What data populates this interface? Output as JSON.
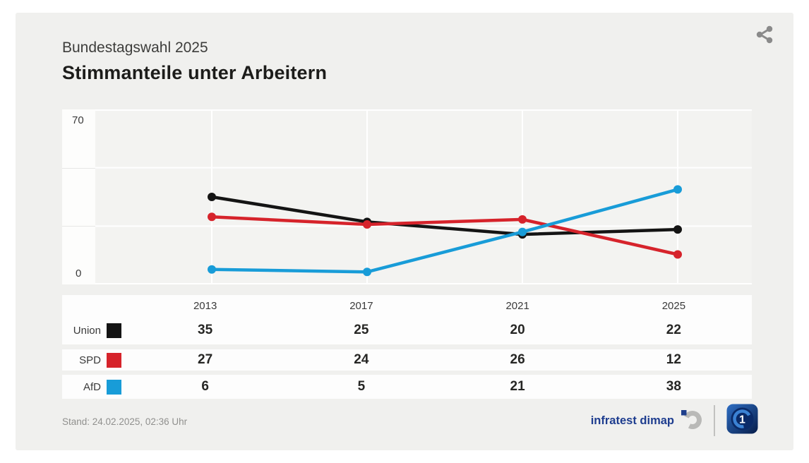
{
  "header": {
    "subtitle": "Bundestagswahl 2025",
    "title": "Stimmanteile unter Arbeitern",
    "share_icon": "share-icon"
  },
  "chart_data": {
    "type": "line",
    "title": "Stimmanteile unter Arbeitern",
    "subtitle": "Bundestagswahl 2025",
    "categories": [
      "2013",
      "2017",
      "2021",
      "2025"
    ],
    "series": [
      {
        "name": "Union",
        "color": "#141414",
        "values": [
          35,
          25,
          20,
          22
        ]
      },
      {
        "name": "SPD",
        "color": "#d6232b",
        "values": [
          27,
          24,
          26,
          12
        ]
      },
      {
        "name": "AfD",
        "color": "#189cd8",
        "values": [
          6,
          5,
          21,
          38
        ]
      }
    ],
    "ylim": [
      0,
      70
    ],
    "yticks": [
      {
        "value": 70,
        "label": "70"
      },
      {
        "value": 0,
        "label": "0"
      }
    ],
    "grid": {
      "horizontal_divisions": 3,
      "vertical_at_categories": true
    },
    "legend_position": "table-rows-left",
    "plot_background": "#f3f3f1",
    "gridline_color": "#ffffff"
  },
  "footer": {
    "stand": "Stand: 24.02.2025, 02:36 Uhr",
    "source": "infratest dimap",
    "source_logo_icon": "infratest-dimap-logo",
    "broadcaster_logo_icon": "ard-wahl-logo"
  }
}
